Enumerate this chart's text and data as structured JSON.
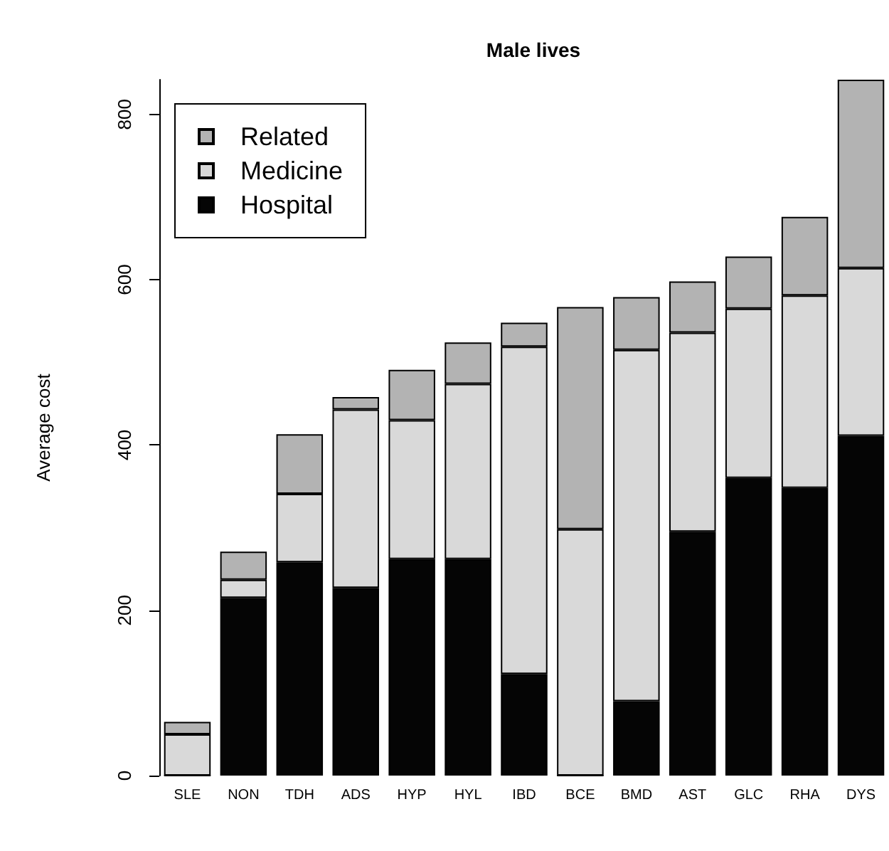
{
  "chart_data": {
    "type": "bar",
    "title": "Male lives",
    "ylabel": "Average cost",
    "stacked": true,
    "categories": [
      "SLE",
      "NON",
      "TDH",
      "ADS",
      "HYP",
      "HYL",
      "IBD",
      "BCE",
      "BMD",
      "AST",
      "GLC",
      "RHA",
      "DYS"
    ],
    "series": [
      {
        "name": "Hospital",
        "color": "#050505",
        "values": [
          0,
          215,
          258,
          227,
          262,
          262,
          123,
          0,
          90,
          295,
          360,
          348,
          411
        ]
      },
      {
        "name": "Medicine",
        "color": "#d9d9d9",
        "values": [
          50,
          22,
          83,
          216,
          168,
          212,
          396,
          298,
          425,
          241,
          205,
          233,
          203
        ]
      },
      {
        "name": "Related",
        "color": "#b3b3b3",
        "values": [
          15,
          34,
          72,
          15,
          61,
          50,
          29,
          269,
          64,
          62,
          63,
          95,
          228
        ]
      }
    ],
    "ylim": [
      0,
      842
    ],
    "yticks": [
      0,
      200,
      400,
      600,
      800
    ],
    "grid": false,
    "legend": "top left"
  }
}
